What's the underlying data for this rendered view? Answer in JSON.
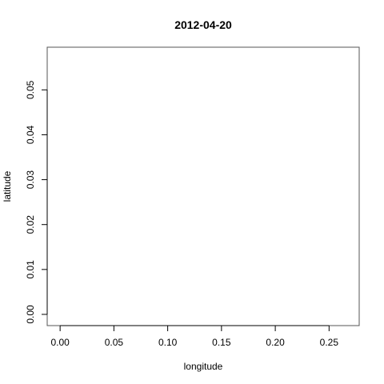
{
  "chart_data": {
    "type": "scatter",
    "title": "2012-04-20",
    "xlabel": "longitude",
    "ylabel": "latitude",
    "xlim": [
      -0.012,
      0.278
    ],
    "ylim": [
      -0.0025,
      0.0595
    ],
    "x_ticks": [
      0,
      0.05,
      0.1,
      0.15,
      0.2,
      0.25
    ],
    "x_tick_labels": [
      "0.00",
      "0.05",
      "0.10",
      "0.15",
      "0.20",
      "0.25"
    ],
    "y_ticks": [
      0,
      0.01,
      0.02,
      0.03,
      0.04,
      0.05
    ],
    "y_tick_labels": [
      "0.00",
      "0.01",
      "0.02",
      "0.03",
      "0.04",
      "0.05"
    ],
    "grid": false,
    "series": [
      {
        "x": [],
        "y": []
      }
    ]
  }
}
